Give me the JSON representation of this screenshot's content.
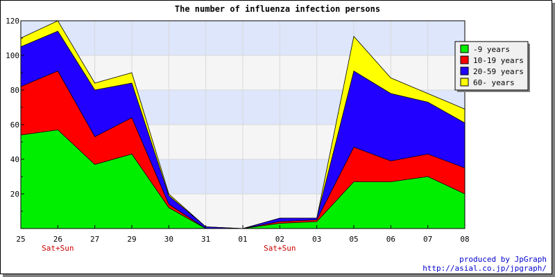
{
  "chart_data": {
    "type": "area",
    "stacked": true,
    "title": "The number of influenza infection persons",
    "xlabel": "",
    "ylabel": "",
    "categories": [
      "25",
      "26",
      "27",
      "29",
      "30",
      "31",
      "01",
      "02",
      "03",
      "05",
      "06",
      "07",
      "08"
    ],
    "sub_labels": [
      "",
      "Sat+Sun",
      "",
      "",
      "",
      "",
      "",
      "Sat+Sun",
      "",
      "",
      "",
      "",
      ""
    ],
    "ylim": [
      0,
      120
    ],
    "yticks": [
      20,
      40,
      60,
      80,
      100,
      120
    ],
    "grid": true,
    "legend_position": "right",
    "series": [
      {
        "name": "-9 years",
        "color": "#00ee00",
        "values": [
          54,
          57,
          37,
          43,
          12,
          0,
          0,
          3,
          4,
          27,
          27,
          30,
          20
        ]
      },
      {
        "name": "10-19 years",
        "color": "#ff0000",
        "values": [
          28,
          34,
          16,
          21,
          2,
          0,
          0,
          1,
          1,
          20,
          12,
          13,
          15
        ]
      },
      {
        "name": "20-59 years",
        "color": "#2200ff",
        "values": [
          23,
          23,
          27,
          20,
          5,
          1,
          0,
          2,
          1,
          44,
          39,
          30,
          26
        ]
      },
      {
        "name": "60- years",
        "color": "#ffff00",
        "values": [
          5,
          6,
          4,
          6,
          1,
          0,
          0,
          0,
          0,
          20,
          9,
          5,
          8
        ]
      }
    ]
  },
  "credit": {
    "line1": "produced by JpGraph",
    "line2": "http://asial.co.jp/jpgraph/"
  }
}
